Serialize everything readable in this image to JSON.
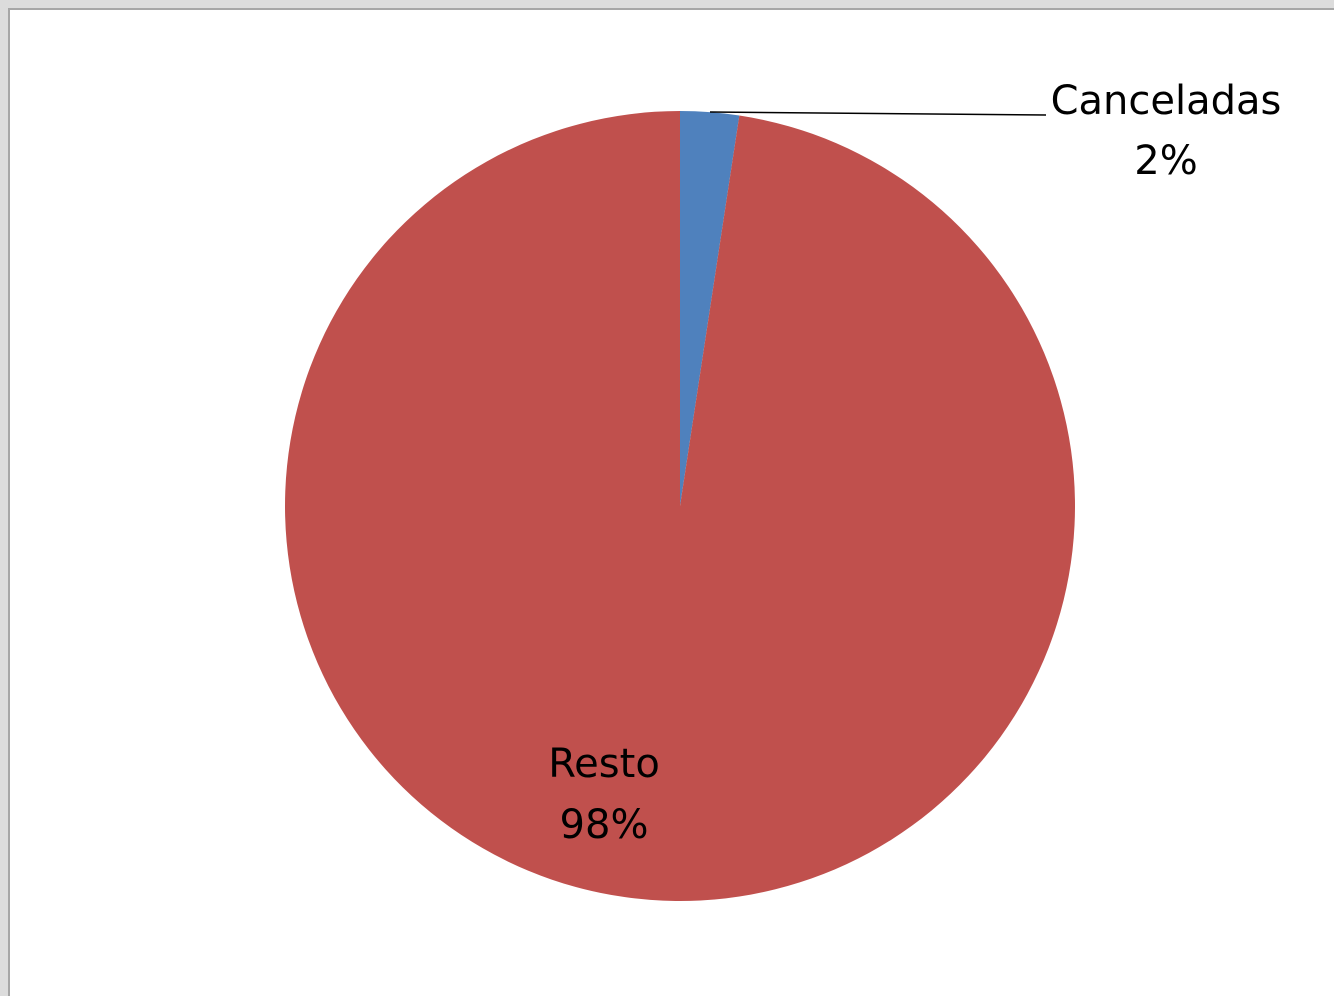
{
  "chart_data": {
    "type": "pie",
    "start_angle_deg": 0,
    "direction": "clockwise",
    "slices": [
      {
        "name": "Canceladas",
        "percent_label": "2%",
        "value": 2.4,
        "color": "#4f81bd"
      },
      {
        "name": "Resto",
        "percent_label": "98%",
        "value": 97.6,
        "color": "#c0504d"
      }
    ],
    "label_placement": {
      "Canceladas": "outside-top-right-with-leader-line",
      "Resto": "inside-bottom-left"
    }
  }
}
